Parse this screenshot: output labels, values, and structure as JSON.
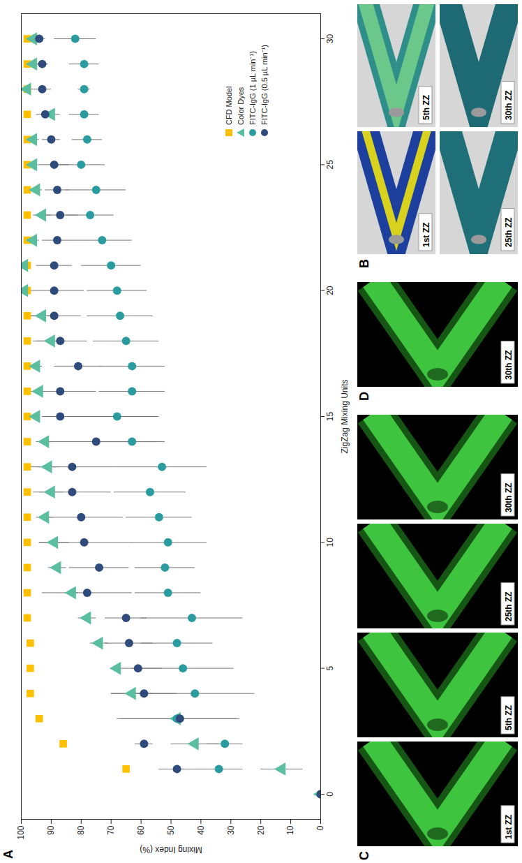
{
  "chart_data": {
    "type": "scatter",
    "panel_label": "A",
    "x_label": "ZigZag Mixing Units",
    "y_label": "Mixing Index (%)",
    "x": [
      0,
      1,
      2,
      3,
      4,
      5,
      6,
      7,
      8,
      9,
      10,
      11,
      12,
      13,
      14,
      15,
      16,
      17,
      18,
      19,
      20,
      21,
      22,
      23,
      24,
      25,
      26,
      27,
      28,
      29,
      30
    ],
    "xlim": [
      -1,
      31
    ],
    "xticks": [
      0,
      5,
      10,
      15,
      20,
      25,
      30
    ],
    "ylim": [
      0,
      100
    ],
    "yticks": [
      0,
      10,
      20,
      30,
      40,
      50,
      60,
      70,
      80,
      90,
      100
    ],
    "grid": false,
    "legend": "lower right",
    "series": [
      {
        "name": "CFD Model",
        "color": "#FFC000",
        "marker": "square",
        "values": [
          null,
          65,
          86,
          94,
          97,
          97,
          97,
          98,
          98,
          98,
          98,
          98,
          98,
          98,
          98,
          98,
          98,
          98,
          98,
          98,
          98,
          98,
          98,
          98,
          98,
          98,
          98,
          98,
          98,
          98,
          98
        ]
      },
      {
        "name": "Color Dyes",
        "color": "#5BBF9F",
        "marker": "triangle",
        "values": [
          0,
          13,
          42,
          48,
          63,
          68,
          74,
          78,
          83,
          88,
          89,
          92,
          90,
          91,
          92,
          95,
          94,
          95,
          90,
          93,
          99,
          99,
          96,
          93,
          95,
          96,
          96,
          90,
          98,
          96,
          96
        ],
        "errors": [
          null,
          7,
          8,
          null,
          7,
          null,
          3,
          3,
          2,
          3,
          5,
          3,
          4,
          4,
          2,
          1,
          2,
          2,
          5,
          4,
          1,
          1,
          2,
          3,
          2,
          2,
          2,
          3,
          2,
          2,
          2
        ]
      },
      {
        "name": "FITC-IgG (1 µL min⁻¹)",
        "color": "#2A9C9F",
        "marker": "circle",
        "values": [
          0,
          34,
          32,
          48,
          42,
          46,
          48,
          43,
          51,
          52,
          51,
          54,
          57,
          53,
          63,
          68,
          63,
          63,
          65,
          67,
          68,
          70,
          73,
          77,
          75,
          80,
          78,
          79,
          79,
          79,
          82
        ],
        "errors": [
          null,
          8,
          6,
          20,
          20,
          17,
          12,
          17,
          11,
          10,
          13,
          11,
          12,
          15,
          11,
          14,
          11,
          11,
          11,
          11,
          10,
          10,
          10,
          8,
          10,
          8,
          5,
          5,
          2,
          5,
          7
        ]
      },
      {
        "name": "FITC-IgG (0.5 µL min⁻¹)",
        "color": "#2F4B7C",
        "marker": "circle",
        "values": [
          0,
          48,
          59,
          47,
          59,
          61,
          64,
          65,
          78,
          74,
          79,
          80,
          83,
          83,
          75,
          87,
          87,
          81,
          87,
          89,
          89,
          89,
          88,
          87,
          88,
          89,
          90,
          92,
          93,
          93,
          94
        ],
        "errors": [
          null,
          6,
          3,
          20,
          11,
          8,
          8,
          7,
          15,
          10,
          15,
          14,
          13,
          15,
          20,
          6,
          12,
          8,
          9,
          9,
          10,
          6,
          5,
          6,
          4,
          5,
          3,
          3,
          3,
          2,
          2
        ]
      }
    ]
  },
  "panels": [
    {
      "label": "B",
      "images": [
        "1st ZZ",
        "5th ZZ",
        "25th ZZ",
        "30th ZZ"
      ]
    },
    {
      "label": "C",
      "images": [
        "1st ZZ",
        "5th ZZ",
        "25th ZZ",
        "30th ZZ"
      ]
    },
    {
      "label": "D",
      "images": [
        "30th ZZ"
      ]
    }
  ]
}
